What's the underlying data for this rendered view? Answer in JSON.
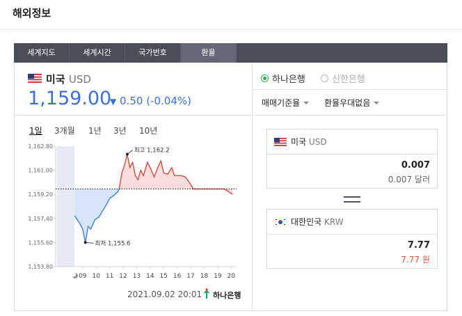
{
  "header": {
    "title": "해외정보"
  },
  "tabs": [
    "세계지도",
    "세계시간",
    "국가번호",
    "환율"
  ],
  "active_tab": 3,
  "currency": {
    "country": "미국",
    "code": "USD",
    "rate": "1,159.00",
    "change": "0.50",
    "change_pct": "(-0.04%)"
  },
  "banks": [
    {
      "name": "하나은행",
      "selected": true
    },
    {
      "name": "신한은행",
      "selected": false
    }
  ],
  "options": [
    "매매기준율",
    "환율우대없음"
  ],
  "periods": [
    "1일",
    "3개월",
    "1년",
    "3년",
    "10년"
  ],
  "active_period": 0,
  "chart_data": {
    "type": "line",
    "x": [
      8.4,
      8.6,
      8.8,
      9.0,
      9.2,
      9.4,
      9.6,
      9.9,
      10.2,
      10.5,
      10.8,
      11.0,
      11.3,
      11.6,
      11.7,
      11.9,
      12.1,
      12.3,
      12.5,
      12.7,
      12.9,
      13.1,
      13.3,
      13.5,
      13.8,
      14.0,
      14.3,
      14.6,
      14.8,
      15.0,
      15.3,
      15.6,
      15.8,
      16.0,
      16.3,
      16.6,
      16.9,
      17.2,
      18.0,
      19.0,
      19.5,
      20.1
    ],
    "series": [
      {
        "color": "#3d7fd9",
        "fill": "#d6e6f8",
        "values": [
          1157.6,
          1157.3,
          1157.0,
          1156.6,
          1155.6,
          1156.8,
          1156.6,
          1157.3,
          1157.5,
          1158.0,
          1158.5,
          1158.9,
          1159.1,
          1159.4,
          1159.6,
          null,
          null,
          null,
          null,
          null,
          null,
          null,
          null,
          null,
          null,
          null,
          null,
          null,
          null,
          null,
          null,
          null,
          null,
          null,
          null,
          null,
          null,
          null,
          null,
          null,
          null,
          null
        ]
      },
      {
        "color": "#d44a45",
        "fill": "#f9dcdc",
        "values": [
          null,
          null,
          null,
          null,
          null,
          null,
          null,
          null,
          null,
          null,
          null,
          null,
          null,
          null,
          1159.6,
          1160.8,
          1161.4,
          1162.2,
          1161.2,
          1161.6,
          1160.6,
          1160.3,
          1161.0,
          1160.6,
          1161.6,
          1161.2,
          1160.5,
          1161.3,
          1161.7,
          1160.8,
          1160.7,
          1161.2,
          1160.6,
          1160.6,
          1160.6,
          1160.5,
          1160.1,
          1159.6,
          1159.6,
          1159.6,
          1159.6,
          1159.2
        ]
      }
    ],
    "reference": 1159.6,
    "annotations": [
      "최고 1,162.2",
      "최저 1,155.6"
    ],
    "xlim": [
      7,
      20.4
    ],
    "xticks": [
      {
        "value": 9,
        "label": "09"
      },
      10,
      11,
      12,
      13,
      14,
      15,
      16,
      17,
      18,
      19,
      20
    ],
    "ylim": [
      1153.8,
      1162.8
    ],
    "yticks": [
      {
        "value": 1162.8,
        "label": "1,162.80"
      },
      {
        "value": 1161.0,
        "label": "1,161.00"
      },
      {
        "value": 1159.2,
        "label": "1,159.20"
      },
      {
        "value": 1157.4,
        "label": "1,157.40"
      },
      {
        "value": 1155.6,
        "label": "1,155.60"
      },
      {
        "value": 1153.8,
        "label": "1,153.80"
      }
    ]
  },
  "timestamp": "2021.09.02 20:01",
  "logo": "하나은행",
  "converter": [
    {
      "country": "미국",
      "code": "USD",
      "value": "0.007",
      "sub_value": "0.007 달러"
    },
    {
      "country": "대한민국",
      "code": "KRW",
      "value": "7.77",
      "sub_value": "7.77 원"
    }
  ]
}
